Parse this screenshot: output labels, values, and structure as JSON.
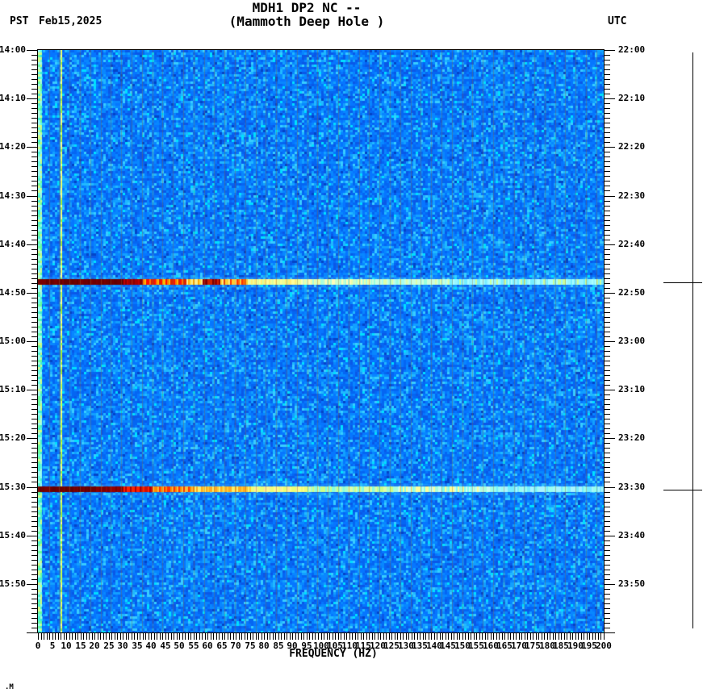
{
  "header": {
    "timezone_left": "PST",
    "date": "Feb15,2025",
    "title_line1": "MDH1 DP2 NC --",
    "title_line2": "(Mammoth Deep Hole )",
    "timezone_right": "UTC"
  },
  "footer": {
    "xlabel": "FREQUENCY (HZ)",
    "watermark": ".M"
  },
  "chart_data": {
    "type": "heatmap",
    "subtype": "seismic-spectrogram",
    "title": "MDH1 DP2 NC --",
    "subtitle": "(Mammoth Deep Hole )",
    "station": "MDH1 DP2 NC",
    "station_name": "Mammoth Deep Hole",
    "date": "Feb15,2025",
    "xlabel": "FREQUENCY (HZ)",
    "xlim": [
      0,
      200
    ],
    "x_label_step_hz": 5,
    "x_minor_tick_step_hz": 1,
    "x_tick_labels": [
      "0",
      "5",
      "10",
      "15",
      "20",
      "25",
      "30",
      "35",
      "40",
      "45",
      "50",
      "55",
      "60",
      "65",
      "70",
      "75",
      "80",
      "85",
      "90",
      "95",
      "100",
      "105",
      "110",
      "115",
      "120",
      "125",
      "130",
      "135",
      "140",
      "145",
      "150",
      "155",
      "160",
      "165",
      "170",
      "175",
      "180",
      "185",
      "190",
      "195",
      "200"
    ],
    "y_left_axis": {
      "timezone": "PST",
      "start": "14:00",
      "end": "16:00",
      "minutes_span": 120,
      "minor_tick_step_min": 1,
      "label_step_min": 10,
      "tick_labels": [
        "14:00",
        "14:10",
        "14:20",
        "14:30",
        "14:40",
        "14:50",
        "15:00",
        "15:10",
        "15:20",
        "15:30",
        "15:40",
        "15:50"
      ]
    },
    "y_right_axis": {
      "timezone": "UTC",
      "start": "22:00",
      "end": "24:00",
      "tick_labels": [
        "22:00",
        "22:10",
        "22:20",
        "22:30",
        "22:40",
        "22:50",
        "23:00",
        "23:10",
        "23:20",
        "23:30",
        "23:40",
        "23:50"
      ]
    },
    "events": [
      {
        "pst": "14:48",
        "utc": "22:48",
        "minutes_from_start": 47.9,
        "description": "high-amplitude broadband event line (red/orange fading to cyan with high frequency)"
      },
      {
        "pst": "15:30",
        "utc": "23:30",
        "minutes_from_start": 90.5,
        "description": "high-amplitude broadband event line (red/orange fading to cyan with high frequency)"
      }
    ],
    "features": {
      "low_freq_bright_stripe_hz": [
        0,
        1.5
      ],
      "tonal_line_hz": 8,
      "faint_vertical_line_spacing_px": 12.8
    },
    "colors": {
      "background_palette": [
        [
          "#0A58E8",
          0.12
        ],
        [
          "#0566F2",
          0.2
        ],
        [
          "#0676FF",
          0.22
        ],
        [
          "#0887FF",
          0.16
        ],
        [
          "#12A0FF",
          0.12
        ],
        [
          "#20B8FF",
          0.08
        ],
        [
          "#38CCFF",
          0.05
        ],
        [
          "#00E0FF",
          0.03
        ],
        [
          "#0345C8",
          0.02
        ]
      ],
      "edge_stripe_palette": [
        "#66FFDD",
        "#44EECC",
        "#99FFEE",
        "#AAFFDD",
        "#CCFF88",
        "#66FF99"
      ],
      "tonal_line_palette": [
        "#CCFF44",
        "#EEFF66",
        "#AAEE33",
        "#FFFF88"
      ],
      "faint_vertical_line": "rgba(140,105,60,0.38)",
      "axis_color": "#000000"
    },
    "event_profiles": [
      [
        {
          "from": 0,
          "to": 30,
          "striped": false,
          "colors": [
            "#6E0000",
            "#7A0000",
            "#640000",
            "#700000"
          ]
        },
        {
          "from": 30,
          "to": 37,
          "striped": false,
          "colors": [
            "#8B0000",
            "#A50000",
            "#C00000"
          ]
        },
        {
          "from": 37,
          "to": 52,
          "striped": true,
          "colors": [
            "#FF1100",
            "#FF7700",
            "#FFBB00",
            "#DD2200"
          ]
        },
        {
          "from": 52,
          "to": 58,
          "striped": true,
          "colors": [
            "#FFAA00",
            "#FFDD44",
            "#FFEE88"
          ]
        },
        {
          "from": 58,
          "to": 64,
          "striped": false,
          "colors": [
            "#7A0000",
            "#990000",
            "#CC2200"
          ]
        },
        {
          "from": 64,
          "to": 74,
          "striped": true,
          "colors": [
            "#FF6600",
            "#FFCC33",
            "#FFEE77",
            "#FF3300"
          ]
        },
        {
          "from": 74,
          "to": 93,
          "striped": false,
          "colors": [
            "#FFFF99",
            "#EEFF99",
            "#FFEE77",
            "#DDFF99"
          ]
        },
        {
          "from": 93,
          "to": 118,
          "striped": false,
          "colors": [
            "#EEFFAA",
            "#CCFFCC",
            "#AAFFDD",
            "#FFFFBB"
          ]
        },
        {
          "from": 118,
          "to": 145,
          "striped": false,
          "colors": [
            "#99FFDD",
            "#AAFFEE",
            "#CCFFDD",
            "#DDFFAA"
          ]
        },
        {
          "from": 145,
          "to": 200,
          "striped": false,
          "colors": [
            "#77EEFF",
            "#99F5FF",
            "#AAFFFF",
            "#CCFF99"
          ]
        }
      ],
      [
        {
          "from": 0,
          "to": 20,
          "striped": false,
          "colors": [
            "#6E0000",
            "#7A0000",
            "#640000",
            "#700000"
          ]
        },
        {
          "from": 20,
          "to": 30,
          "striped": false,
          "colors": [
            "#7A0000",
            "#8B0000",
            "#960000"
          ]
        },
        {
          "from": 30,
          "to": 40,
          "striped": true,
          "colors": [
            "#B00000",
            "#D01000",
            "#FF2200"
          ]
        },
        {
          "from": 40,
          "to": 55,
          "striped": true,
          "colors": [
            "#FF3300",
            "#FF8800",
            "#FFBB33"
          ]
        },
        {
          "from": 55,
          "to": 75,
          "striped": true,
          "colors": [
            "#FFCC33",
            "#FFEE66",
            "#FFAA22"
          ]
        },
        {
          "from": 75,
          "to": 95,
          "striped": false,
          "colors": [
            "#FFFF88",
            "#EEFF77",
            "#FFEE99"
          ]
        },
        {
          "from": 95,
          "to": 125,
          "striped": false,
          "colors": [
            "#CCFF88",
            "#AAFFCC",
            "#DDFFAA",
            "#88FFDD"
          ]
        },
        {
          "from": 125,
          "to": 160,
          "striped": false,
          "colors": [
            "#88FFEE",
            "#AAFFDD",
            "#CCFFEE",
            "#FFFF99"
          ]
        },
        {
          "from": 160,
          "to": 200,
          "striped": false,
          "colors": [
            "#77EEFF",
            "#99FFEE",
            "#AAF5FF"
          ]
        }
      ]
    ]
  }
}
